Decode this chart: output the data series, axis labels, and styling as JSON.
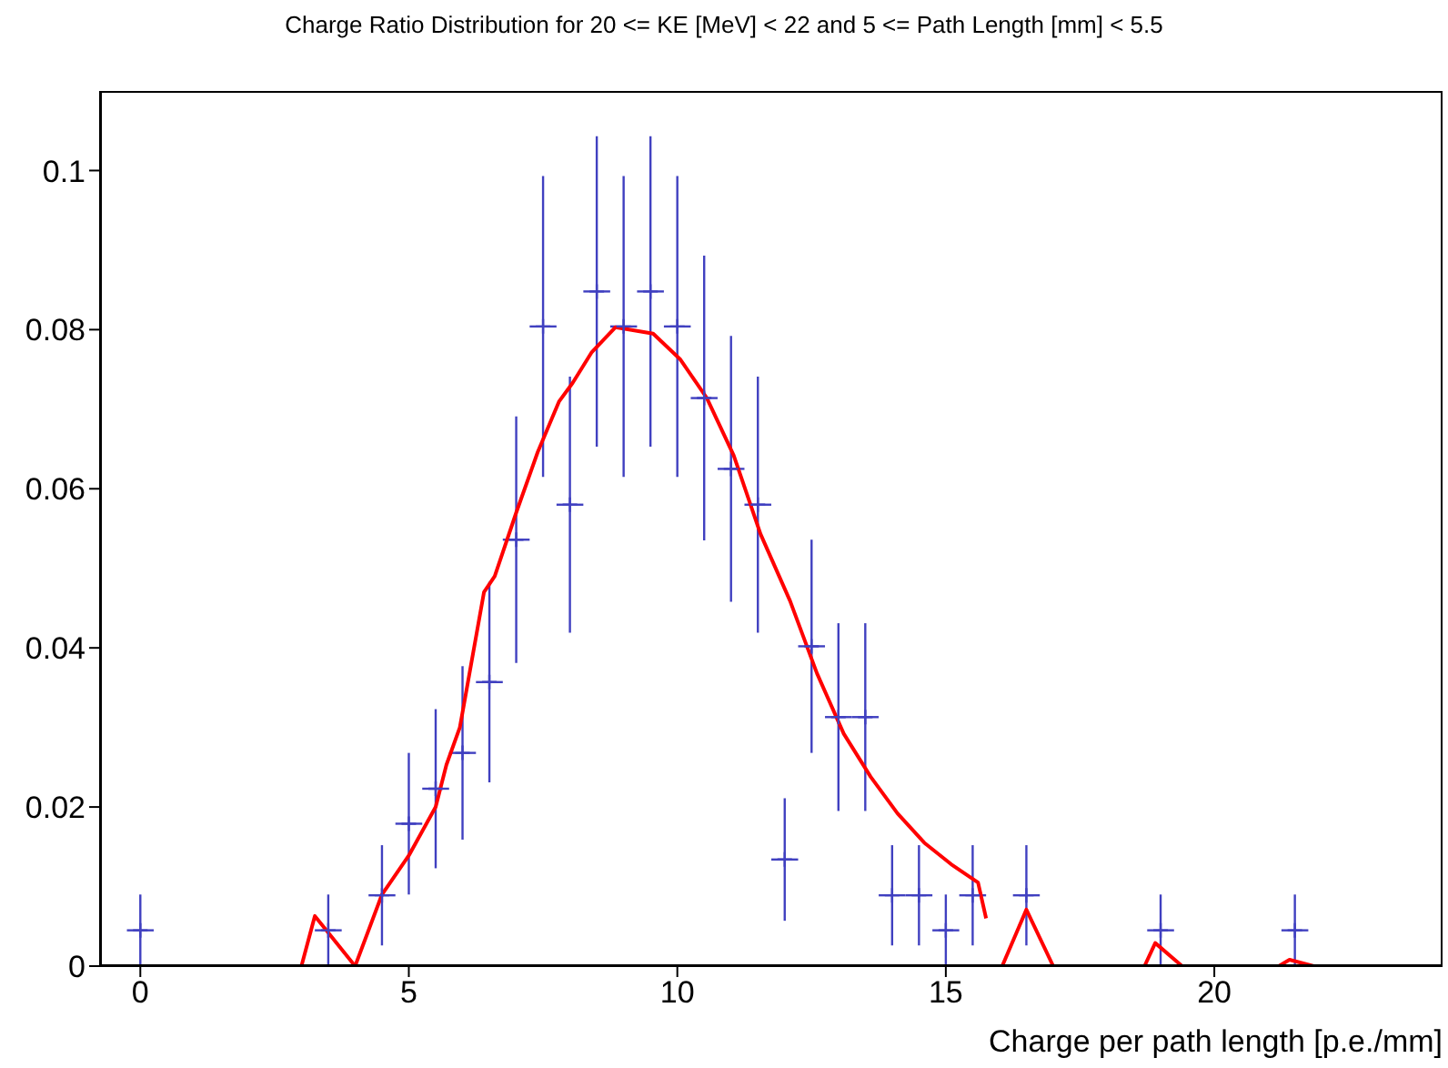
{
  "chart_data": {
    "type": "scatter",
    "title": "Charge Ratio Distribution for 20 <= KE [MeV] < 22 and 5 <= Path Length [mm] < 5.5",
    "xlabel": "Charge per path length [p.e./mm]",
    "xlim": [
      -0.75,
      24.25
    ],
    "xticks": [
      0,
      5,
      10,
      15,
      20
    ],
    "ylim": [
      0,
      0.11
    ],
    "yticks": [
      0,
      0.02,
      0.04,
      0.06,
      0.08,
      0.1
    ],
    "grid": false,
    "legend": false,
    "series": [
      {
        "color": "#4040c0",
        "x": [
          0,
          3.5,
          4.5,
          5,
          5.5,
          6,
          6.5,
          7,
          7.5,
          8,
          8.5,
          9,
          9.5,
          10,
          10.5,
          11,
          11.5,
          12,
          12.5,
          13,
          13.5,
          14,
          14.5,
          15,
          15.5,
          16.5,
          19,
          21.5
        ],
        "values": [
          0.0045,
          0.0045,
          0.0089,
          0.0179,
          0.0223,
          0.0268,
          0.0357,
          0.0536,
          0.0804,
          0.058,
          0.0848,
          0.0804,
          0.0848,
          0.0804,
          0.0714,
          0.0625,
          0.058,
          0.0134,
          0.0402,
          0.0313,
          0.0313,
          0.0089,
          0.0089,
          0.0045,
          0.0089,
          0.0089,
          0.0045,
          0.0045
        ],
        "errors": [
          0.0045,
          0.0045,
          0.0063,
          0.0089,
          0.01,
          0.0109,
          0.0126,
          0.0155,
          0.0189,
          0.0161,
          0.0195,
          0.0189,
          0.0195,
          0.0189,
          0.0179,
          0.0167,
          0.0161,
          0.0077,
          0.0134,
          0.0118,
          0.0118,
          0.0063,
          0.0063,
          0.0045,
          0.0063,
          0.0063,
          0.0045,
          0.0045
        ],
        "xerrors": [
          0.25,
          0.25,
          0.25,
          0.25,
          0.25,
          0.25,
          0.25,
          0.25,
          0.25,
          0.25,
          0.25,
          0.25,
          0.25,
          0.25,
          0.25,
          0.25,
          0.25,
          0.25,
          0.25,
          0.25,
          0.25,
          0.25,
          0.25,
          0.25,
          0.25,
          0.25,
          0.25,
          0.25
        ]
      },
      {
        "type": "line",
        "color": "#ff0000",
        "x": [
          0.5,
          3,
          3.25,
          4,
          4.5,
          5,
          5.5,
          5.7,
          5.95,
          6.4,
          6.6,
          7,
          7.4,
          7.8,
          8.05,
          8.4,
          8.85,
          9.55,
          10.05,
          10.55,
          11.05,
          11.55,
          12.1,
          12.6,
          13.1,
          13.6,
          14.1,
          14.6,
          15.1,
          15.6,
          15.75,
          15.9,
          16.05,
          16.5,
          17,
          18.7,
          18.9,
          19.4,
          21.2,
          21.4,
          21.85,
          24
        ],
        "values": [
          0,
          0,
          0.0063,
          0,
          0.009,
          0.0139,
          0.02,
          0.0253,
          0.03,
          0.047,
          0.049,
          0.057,
          0.0646,
          0.071,
          0.0733,
          0.0771,
          0.0803,
          0.0795,
          0.0763,
          0.0714,
          0.0642,
          0.0543,
          0.0459,
          0.0368,
          0.0292,
          0.0238,
          0.0192,
          0.0155,
          0.0128,
          0.0105,
          0.006,
          null,
          0,
          0.0071,
          0,
          0,
          0.0029,
          0,
          0,
          0.0008,
          0,
          0
        ]
      }
    ]
  }
}
